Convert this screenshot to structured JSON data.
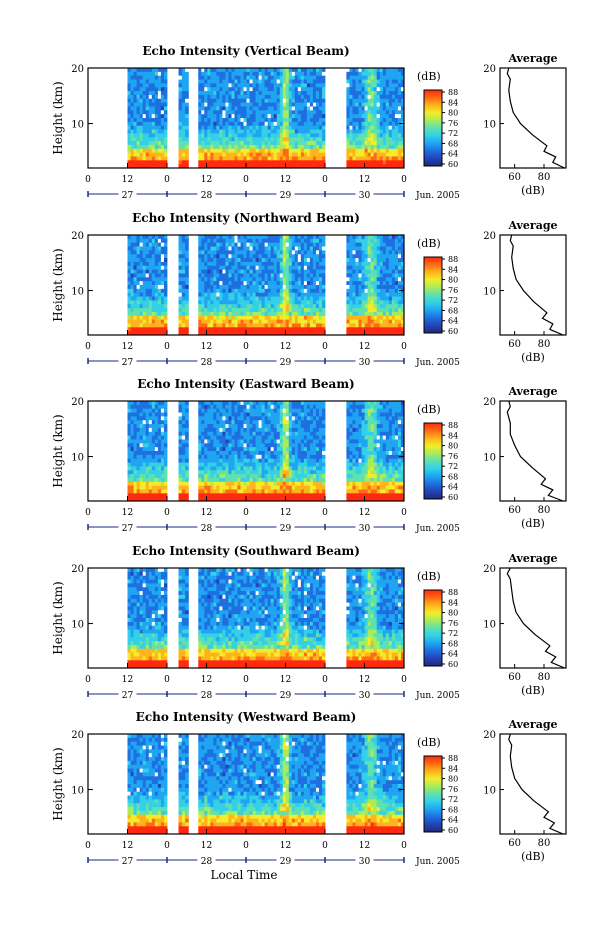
{
  "figure": {
    "xlabel": "Local Time",
    "date_suffix": "Jun. 2005",
    "day_labels": [
      "27",
      "28",
      "29",
      "30"
    ],
    "hour_ticks": [
      "0",
      "12",
      "0",
      "12",
      "0",
      "12",
      "0",
      "12",
      "0"
    ],
    "ylabel": "Height (km)",
    "y_ticks": [
      "20",
      "10"
    ],
    "colorbar_title": "(dB)",
    "colorbar_ticks": [
      "88",
      "84",
      "80",
      "76",
      "72",
      "68",
      "64",
      "60"
    ],
    "avg_title": "Average",
    "avg_xlabel": "(dB)"
  },
  "colors": {
    "colormap": [
      "#1f2a78",
      "#2443b8",
      "#1e6fe0",
      "#1fa5f2",
      "#33d0e8",
      "#5ee0b0",
      "#a8ec5a",
      "#f2ec2a",
      "#ffb31c",
      "#ff6a14",
      "#ff2a0f"
    ],
    "background": "#ffffff",
    "axis": "#000000",
    "date_axis": "#1a2a8a"
  },
  "chart_data": [
    {
      "type": "heatmap",
      "title": "Echo Intensity (Vertical Beam)",
      "avg_xticks": [
        "60",
        "80"
      ],
      "avg_xlim": [
        50,
        95
      ],
      "avg_profile": {
        "height_km": [
          20,
          19,
          18,
          16,
          14,
          12,
          10,
          8,
          6,
          5,
          4,
          3,
          2
        ],
        "db": [
          56,
          55,
          57,
          56,
          57,
          59,
          64,
          72,
          82,
          80,
          88,
          86,
          94
        ]
      }
    },
    {
      "type": "heatmap",
      "title": "Echo Intensity (Northward Beam)",
      "avg_xticks": [
        "60",
        "80"
      ],
      "avg_xlim": [
        50,
        95
      ],
      "avg_profile": {
        "height_km": [
          20,
          19,
          18,
          16,
          14,
          12,
          10,
          8,
          6,
          5,
          4,
          3,
          2
        ],
        "db": [
          58,
          57,
          59,
          58,
          59,
          61,
          66,
          73,
          82,
          79,
          86,
          84,
          93
        ]
      }
    },
    {
      "type": "heatmap",
      "title": "Echo Intensity (Eastward Beam)",
      "avg_xticks": [
        "60",
        "80"
      ],
      "avg_xlim": [
        50,
        95
      ],
      "avg_profile": {
        "height_km": [
          20,
          19,
          18,
          16,
          14,
          12,
          10,
          8,
          6,
          5,
          4,
          3,
          2
        ],
        "db": [
          56,
          57,
          55,
          57,
          57,
          60,
          64,
          72,
          81,
          78,
          86,
          83,
          93
        ]
      }
    },
    {
      "type": "heatmap",
      "title": "Echo Intensity (Southward Beam)",
      "avg_xticks": [
        "60",
        "80"
      ],
      "avg_xlim": [
        50,
        95
      ],
      "avg_profile": {
        "height_km": [
          20,
          19,
          18,
          16,
          14,
          12,
          10,
          8,
          6,
          5,
          4,
          3,
          2
        ],
        "db": [
          57,
          55,
          57,
          58,
          59,
          61,
          66,
          74,
          84,
          81,
          88,
          85,
          94
        ]
      }
    },
    {
      "type": "heatmap",
      "title": "Echo Intensity (Westward Beam)",
      "avg_xticks": [
        "60",
        "80"
      ],
      "avg_xlim": [
        50,
        95
      ],
      "avg_profile": {
        "height_km": [
          20,
          19,
          18,
          16,
          14,
          12,
          10,
          8,
          6,
          5,
          4,
          3,
          2
        ],
        "db": [
          57,
          56,
          58,
          57,
          58,
          60,
          65,
          73,
          83,
          80,
          87,
          84,
          93
        ]
      }
    }
  ]
}
